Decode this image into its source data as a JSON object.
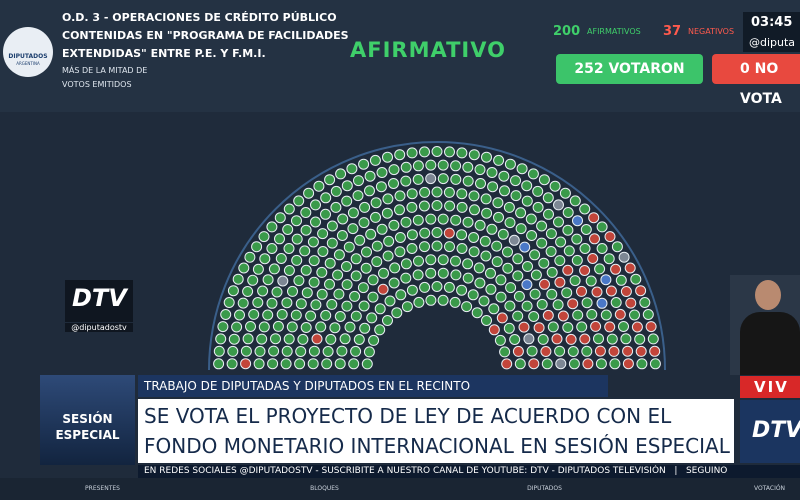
{
  "header": {
    "logo": [
      "DIPUTADOS",
      "ARGENTINA"
    ],
    "title_lines": [
      "O.D. 3 - OPERACIONES DE CRÉDITO PÚBLICO",
      "CONTENIDAS EN \"PROGRAMA DE FACILIDADES",
      "EXTENDIDAS\" ENTRE P.E. Y F.M.I."
    ],
    "majority_lines": [
      "MÁS DE LA MITAD DE",
      "VOTOS EMITIDOS"
    ],
    "result": "AFIRMATIVO",
    "affirmative": {
      "count": 200,
      "label": "AFIRMATIVOS"
    },
    "negative": {
      "count": 37,
      "label": "NEGATIVOS"
    },
    "voted": "252 VOTARON",
    "not_voted": "0 NO VOTA",
    "clock": "03:45",
    "handle": "@diputa"
  },
  "channel": {
    "logo": "DTV",
    "handle": "@diputadostv"
  },
  "lower_third": {
    "kicker": "TRABAJO DE DIPUTADAS Y DIPUTADOS EN EL RECINTO",
    "headline_lines": [
      "SE VOTA EL PROYECTO DE LEY DE ACUERDO CON EL",
      "FONDO MONETARIO INTERNACIONAL EN SESIÓN ESPECIAL"
    ],
    "badge_lines": [
      "SESIÓN",
      "ESPECIAL"
    ],
    "live": "VIV",
    "live_logo": "DTV"
  },
  "ticker": "EN REDES SOCIALES @DIPUTADOSTV - SUSCRIBITE A NUESTRO CANAL DE YOUTUBE: DTV - DIPUTADOS TELEVISIÓN   |   SEGUINO",
  "nav": [
    "PRESENTES",
    "BLOQUES",
    "DIPUTADOS",
    "VOTACIÓN"
  ]
}
